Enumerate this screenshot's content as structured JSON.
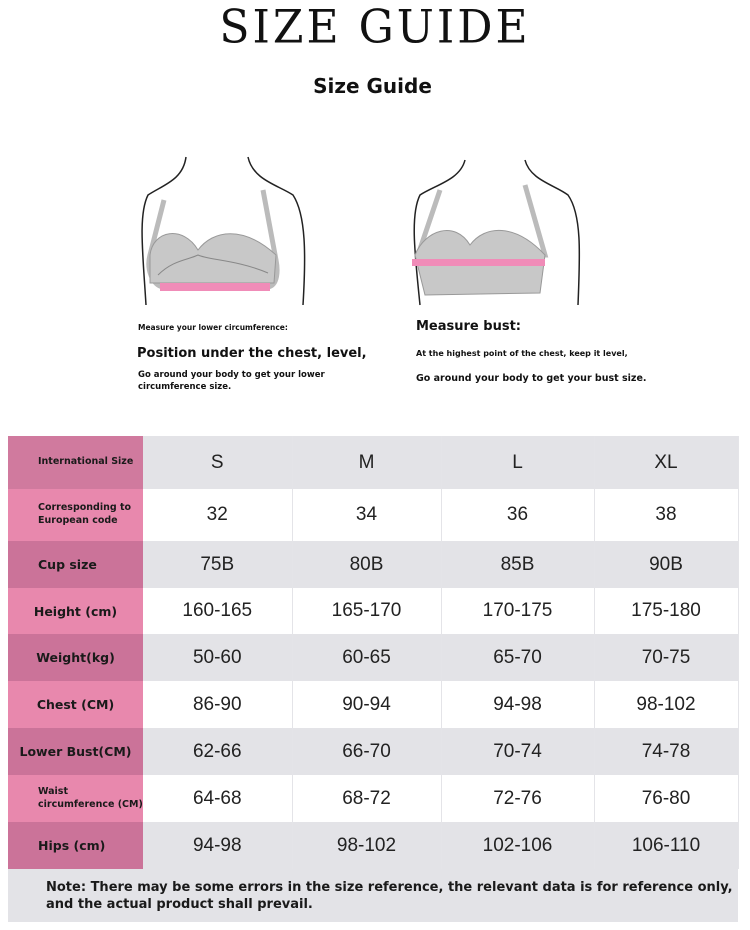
{
  "header": {
    "title": "SIZE GUIDE",
    "subtitle": "Size Guide"
  },
  "instructions": {
    "left": {
      "caption": "Measure your lower circumference:",
      "heading": "Position under the chest, level,",
      "body_line1": "Go around your body to get your lower",
      "body_line2": "circumference size."
    },
    "right": {
      "heading": "Measure bust:",
      "line1": "At the highest point of the chest, keep it level,",
      "line2": "Go around your body to get your bust size."
    }
  },
  "colors": {
    "label_dark": "#cb7399",
    "label_light": "#e888ad",
    "row_gray": "#e3e3e7",
    "tape": "#f08cb8",
    "bra": "#c8c8c8"
  },
  "table": {
    "rows": [
      {
        "label": "International Size",
        "values": [
          "S",
          "M",
          "L",
          "XL"
        ]
      },
      {
        "label": "Corresponding to European code",
        "values": [
          "32",
          "34",
          "36",
          "38"
        ]
      },
      {
        "label": "Cup size",
        "values": [
          "75B",
          "80B",
          "85B",
          "90B"
        ]
      },
      {
        "label": "Height (cm)",
        "values": [
          "160-165",
          "165-170",
          "170-175",
          "175-180"
        ]
      },
      {
        "label": "Weight(kg)",
        "values": [
          "50-60",
          "60-65",
          "65-70",
          "70-75"
        ]
      },
      {
        "label": "Chest (CM)",
        "values": [
          "86-90",
          "90-94",
          "94-98",
          "98-102"
        ]
      },
      {
        "label": "Lower Bust(CM)",
        "values": [
          "62-66",
          "66-70",
          "70-74",
          "74-78"
        ]
      },
      {
        "label": "Waist circumference (CM)",
        "values": [
          "64-68",
          "68-72",
          "72-76",
          "76-80"
        ]
      },
      {
        "label": "Hips (cm)",
        "values": [
          "94-98",
          "98-102",
          "102-106",
          "106-110"
        ]
      }
    ]
  },
  "note": {
    "line1": "Note: There may be some errors in the size reference, the relevant data is for reference only,",
    "line2": "and the actual product shall prevail."
  }
}
